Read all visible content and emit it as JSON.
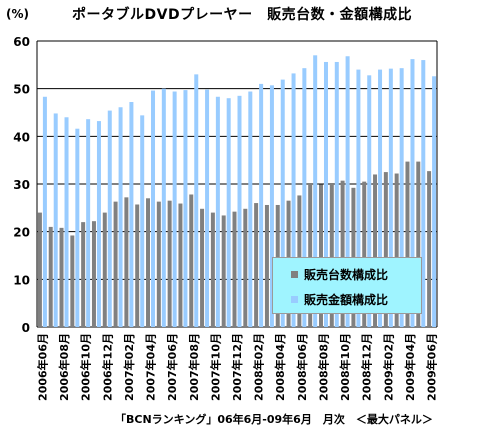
{
  "header": {
    "unit": "(%)",
    "title": "ポータブルDVDプレーヤー　販売台数・金額構成比"
  },
  "footer": {
    "source": "「BCNランキング」06年6月-09年6月　月次　＜最大パネル＞"
  },
  "colors": {
    "units_series": "#808080",
    "amount_series": "#99ccff",
    "legend_bg": "#9ff4ff"
  },
  "chart_data": {
    "type": "bar",
    "ylim": [
      0,
      60
    ],
    "yticks": [
      "0",
      "10",
      "20",
      "30",
      "40",
      "50",
      "60"
    ],
    "grid": true,
    "legend_position": "bottom-right",
    "categories": [
      "2006年06月",
      "2006年07月",
      "2006年08月",
      "2006年09月",
      "2006年10月",
      "2006年11月",
      "2006年12月",
      "2007年01月",
      "2007年02月",
      "2007年03月",
      "2007年04月",
      "2007年05月",
      "2007年06月",
      "2007年07月",
      "2007年08月",
      "2007年09月",
      "2007年10月",
      "2007年11月",
      "2007年12月",
      "2008年01月",
      "2008年02月",
      "2008年03月",
      "2008年04月",
      "2008年05月",
      "2008年06月",
      "2008年07月",
      "2008年08月",
      "2008年09月",
      "2008年10月",
      "2008年11月",
      "2008年12月",
      "2009年01月",
      "2009年02月",
      "2009年03月",
      "2009年04月",
      "2009年05月",
      "2009年06月"
    ],
    "tick_labels_shown": [
      "2006年06月",
      "2006年08月",
      "2006年10月",
      "2006年12月",
      "2007年02月",
      "2007年04月",
      "2007年06月",
      "2007年08月",
      "2007年10月",
      "2007年12月",
      "2008年02月",
      "2008年04月",
      "2008年06月",
      "2008年08月",
      "2008年10月",
      "2008年12月",
      "2009年02月",
      "2009年04月",
      "2009年06月"
    ],
    "series": [
      {
        "name": "販売台数構成比",
        "values": [
          24.0,
          21.0,
          20.8,
          19.2,
          22.0,
          22.2,
          24.0,
          26.3,
          27.2,
          25.7,
          27.0,
          26.3,
          26.5,
          25.9,
          27.8,
          24.8,
          24.0,
          23.4,
          24.2,
          24.8,
          26.0,
          25.6,
          25.6,
          26.5,
          27.6,
          30.0,
          29.9,
          30.0,
          30.7,
          29.2,
          30.5,
          32.0,
          32.5,
          32.2,
          34.7,
          34.7,
          32.7
        ]
      },
      {
        "name": "販売金額構成比",
        "values": [
          48.3,
          44.8,
          44.0,
          41.6,
          43.6,
          43.2,
          45.4,
          46.1,
          47.2,
          44.4,
          49.6,
          50.0,
          49.4,
          49.7,
          53.0,
          49.8,
          48.3,
          48.0,
          48.5,
          49.4,
          51.0,
          50.7,
          51.9,
          53.2,
          54.3,
          57.0,
          55.6,
          55.6,
          56.8,
          54.0,
          52.8,
          54.0,
          54.2,
          54.3,
          56.2,
          56.0,
          52.6
        ]
      }
    ]
  }
}
